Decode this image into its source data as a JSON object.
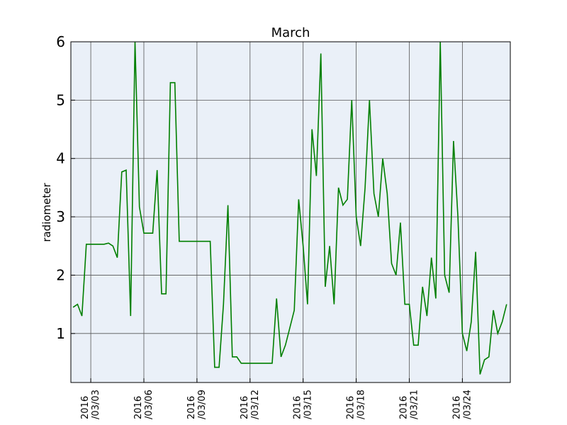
{
  "chart_data": {
    "type": "line",
    "title": "March",
    "y_label": "radiometer",
    "x": [
      "2016-03-02 00:00",
      "2016-03-02 06:00",
      "2016-03-02 12:00",
      "2016-03-02 18:00",
      "2016-03-03 00:00",
      "2016-03-03 06:00",
      "2016-03-03 12:00",
      "2016-03-03 18:00",
      "2016-03-04 00:00",
      "2016-03-04 06:00",
      "2016-03-04 12:00",
      "2016-03-04 18:00",
      "2016-03-05 00:00",
      "2016-03-05 06:00",
      "2016-03-05 12:00",
      "2016-03-05 18:00",
      "2016-03-06 00:00",
      "2016-03-06 06:00",
      "2016-03-06 12:00",
      "2016-03-06 18:00",
      "2016-03-07 00:00",
      "2016-03-07 06:00",
      "2016-03-07 12:00",
      "2016-03-07 18:00",
      "2016-03-08 00:00",
      "2016-03-08 06:00",
      "2016-03-08 12:00",
      "2016-03-08 18:00",
      "2016-03-09 00:00",
      "2016-03-09 06:00",
      "2016-03-09 12:00",
      "2016-03-09 18:00",
      "2016-03-10 00:00",
      "2016-03-10 06:00",
      "2016-03-10 12:00",
      "2016-03-10 18:00",
      "2016-03-11 00:00",
      "2016-03-11 06:00",
      "2016-03-11 12:00",
      "2016-03-11 18:00",
      "2016-03-12 00:00",
      "2016-03-12 06:00",
      "2016-03-12 12:00",
      "2016-03-12 18:00",
      "2016-03-13 00:00",
      "2016-03-13 06:00",
      "2016-03-13 12:00",
      "2016-03-13 18:00",
      "2016-03-14 00:00",
      "2016-03-14 06:00",
      "2016-03-14 12:00",
      "2016-03-14 18:00",
      "2016-03-15 00:00",
      "2016-03-15 06:00",
      "2016-03-15 12:00",
      "2016-03-15 18:00",
      "2016-03-16 00:00",
      "2016-03-16 06:00",
      "2016-03-16 12:00",
      "2016-03-16 18:00",
      "2016-03-17 00:00",
      "2016-03-17 06:00",
      "2016-03-17 12:00",
      "2016-03-17 18:00",
      "2016-03-18 00:00",
      "2016-03-18 06:00",
      "2016-03-18 12:00",
      "2016-03-18 18:00",
      "2016-03-19 00:00",
      "2016-03-19 06:00",
      "2016-03-19 12:00",
      "2016-03-19 18:00",
      "2016-03-20 00:00",
      "2016-03-20 06:00",
      "2016-03-20 12:00",
      "2016-03-20 18:00",
      "2016-03-21 00:00",
      "2016-03-21 06:00",
      "2016-03-21 12:00",
      "2016-03-21 18:00",
      "2016-03-22 00:00",
      "2016-03-22 06:00",
      "2016-03-22 12:00",
      "2016-03-22 18:00",
      "2016-03-23 00:00",
      "2016-03-23 06:00",
      "2016-03-23 12:00",
      "2016-03-23 18:00",
      "2016-03-24 00:00",
      "2016-03-24 06:00",
      "2016-03-24 12:00",
      "2016-03-24 18:00",
      "2016-03-25 00:00",
      "2016-03-25 06:00",
      "2016-03-25 12:00",
      "2016-03-25 18:00",
      "2016-03-26 00:00",
      "2016-03-26 06:00",
      "2016-03-26 12:00"
    ],
    "series": [
      {
        "color": "#007f00",
        "values": [
          1.45,
          1.5,
          1.3,
          2.53,
          2.53,
          2.53,
          2.53,
          2.53,
          2.55,
          2.5,
          2.3,
          3.77,
          3.8,
          1.3,
          6.0,
          3.17,
          2.72,
          2.72,
          2.72,
          3.8,
          1.68,
          1.68,
          5.3,
          5.3,
          2.58,
          2.58,
          2.58,
          2.58,
          2.58,
          2.58,
          2.58,
          2.58,
          0.42,
          0.42,
          1.5,
          3.2,
          0.6,
          0.6,
          0.49,
          0.49,
          0.49,
          0.49,
          0.49,
          0.49,
          0.49,
          0.49,
          1.6,
          0.6,
          0.8,
          1.1,
          1.4,
          3.3,
          2.5,
          1.5,
          4.5,
          3.7,
          5.8,
          1.8,
          2.5,
          1.5,
          3.5,
          3.2,
          3.3,
          5.0,
          3.0,
          2.5,
          3.5,
          5.0,
          3.4,
          3.0,
          4.0,
          3.4,
          2.2,
          2.0,
          2.9,
          1.5,
          1.5,
          0.8,
          0.8,
          1.8,
          1.3,
          2.3,
          1.6,
          6.0,
          2.0,
          1.7,
          4.3,
          3.0,
          1.0,
          0.7,
          1.2,
          2.4,
          0.3,
          0.55,
          0.6,
          1.4,
          1.0,
          1.2,
          1.5
        ]
      }
    ],
    "xlim": [
      "2016-03-01 21:00",
      "2016-03-26 17:00"
    ],
    "xticks": [
      {
        "value": "2016-03-03 00:00",
        "label": "2016/03/03"
      },
      {
        "value": "2016-03-06 00:00",
        "label": "2016/03/06"
      },
      {
        "value": "2016-03-09 00:00",
        "label": "2016/03/09"
      },
      {
        "value": "2016-03-12 00:00",
        "label": "2016/03/12"
      },
      {
        "value": "2016-03-15 00:00",
        "label": "2016/03/15"
      },
      {
        "value": "2016-03-18 00:00",
        "label": "2016/03/18"
      },
      {
        "value": "2016-03-21 00:00",
        "label": "2016/03/21"
      },
      {
        "value": "2016-03-24 00:00",
        "label": "2016/03/24"
      }
    ],
    "ylim": [
      0.16,
      6
    ],
    "yticks": [
      1,
      2,
      3,
      4,
      5,
      6
    ],
    "grid": true
  }
}
